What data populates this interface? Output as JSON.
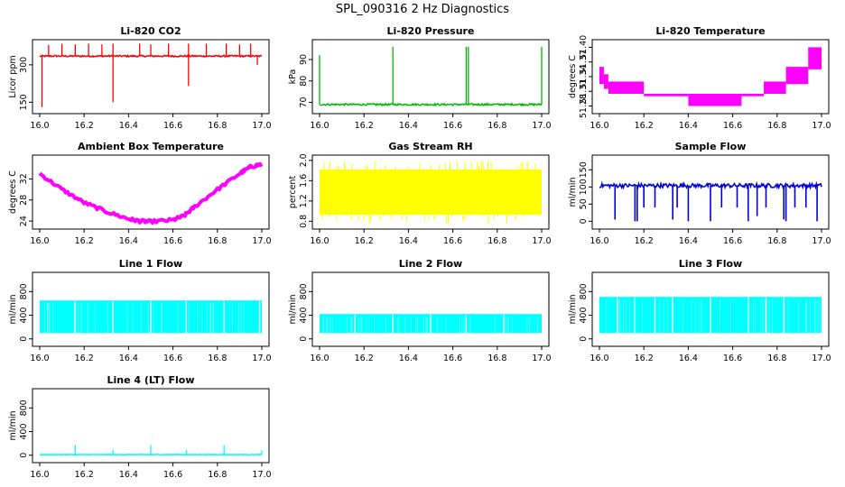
{
  "suptitle": "SPL_090316  2 Hz Diagnostics",
  "chart_data": [
    {
      "type": "line",
      "title": "Li-820 CO2",
      "xlabel": "",
      "ylabel": "Licor ppm",
      "color": "#ff0000",
      "xlim": [
        16.0,
        17.0
      ],
      "xticks": [
        16.0,
        16.2,
        16.4,
        16.6,
        16.8,
        17.0
      ],
      "xtick_labels": [
        "16.0",
        "16.2",
        "16.4",
        "16.6",
        "16.8",
        "17.0"
      ],
      "ylim": [
        115,
        390
      ],
      "yticks": [
        150,
        300
      ],
      "ytick_labels": [
        "150",
        "300"
      ],
      "baseline": 335,
      "noise": 3,
      "spikes": [
        {
          "x": 16.01,
          "y": 130
        },
        {
          "x": 16.04,
          "y": 380
        },
        {
          "x": 16.1,
          "y": 385
        },
        {
          "x": 16.16,
          "y": 382
        },
        {
          "x": 16.22,
          "y": 385
        },
        {
          "x": 16.28,
          "y": 382
        },
        {
          "x": 16.33,
          "y": 150
        },
        {
          "x": 16.33,
          "y": 385
        },
        {
          "x": 16.45,
          "y": 385
        },
        {
          "x": 16.5,
          "y": 382
        },
        {
          "x": 16.58,
          "y": 385
        },
        {
          "x": 16.67,
          "y": 215
        },
        {
          "x": 16.67,
          "y": 385
        },
        {
          "x": 16.75,
          "y": 385
        },
        {
          "x": 16.84,
          "y": 385
        },
        {
          "x": 16.9,
          "y": 382
        },
        {
          "x": 16.95,
          "y": 385
        },
        {
          "x": 16.98,
          "y": 300
        }
      ]
    },
    {
      "type": "line",
      "title": "Li-820 Pressure",
      "xlabel": "",
      "ylabel": "kPa",
      "color": "#00bb00",
      "xlim": [
        16.0,
        17.0
      ],
      "xticks": [
        16.0,
        16.2,
        16.4,
        16.6,
        16.8,
        17.0
      ],
      "xtick_labels": [
        "16.0",
        "16.2",
        "16.4",
        "16.6",
        "16.8",
        "17.0"
      ],
      "ylim": [
        66,
        98
      ],
      "yticks": [
        70,
        80,
        90
      ],
      "ytick_labels": [
        "70",
        "80",
        "90"
      ],
      "baseline": 69,
      "noise": 0.4,
      "spikes": [
        {
          "x": 16.0,
          "y": 92
        },
        {
          "x": 16.33,
          "y": 96
        },
        {
          "x": 16.66,
          "y": 96
        },
        {
          "x": 16.67,
          "y": 96
        },
        {
          "x": 17.0,
          "y": 96
        }
      ]
    },
    {
      "type": "line",
      "title": "Li-820 Temperature",
      "xlabel": "",
      "ylabel": "degrees C",
      "color": "#ff00ff",
      "xlim": [
        16.0,
        17.0
      ],
      "xticks": [
        16.0,
        16.2,
        16.4,
        16.6,
        16.8,
        17.0
      ],
      "xtick_labels": [
        "16.0",
        "16.2",
        "16.4",
        "16.6",
        "16.8",
        "17.0"
      ],
      "ylim": [
        51.27,
        51.41
      ],
      "yticks": [
        51.28,
        51.31,
        51.34,
        51.37,
        51.4
      ],
      "ytick_labels": [
        "51.28",
        "51.31",
        "51.34",
        "51.37",
        "51.40"
      ],
      "steps": [
        {
          "x0": 16.0,
          "x1": 16.02,
          "lo": 51.325,
          "hi": 51.36
        },
        {
          "x0": 16.02,
          "x1": 16.04,
          "lo": 51.315,
          "hi": 51.345
        },
        {
          "x0": 16.04,
          "x1": 16.2,
          "lo": 51.305,
          "hi": 51.33
        },
        {
          "x0": 16.2,
          "x1": 16.4,
          "lo": 51.3,
          "hi": 51.305
        },
        {
          "x0": 16.4,
          "x1": 16.64,
          "lo": 51.28,
          "hi": 51.305
        },
        {
          "x0": 16.64,
          "x1": 16.74,
          "lo": 51.3,
          "hi": 51.305
        },
        {
          "x0": 16.74,
          "x1": 16.84,
          "lo": 51.305,
          "hi": 51.33
        },
        {
          "x0": 16.84,
          "x1": 16.94,
          "lo": 51.325,
          "hi": 51.36
        },
        {
          "x0": 16.94,
          "x1": 17.0,
          "lo": 51.355,
          "hi": 51.4
        }
      ]
    },
    {
      "type": "line",
      "title": "Ambient Box Temperature",
      "xlabel": "",
      "ylabel": "degrees C",
      "color": "#ff00ff",
      "xlim": [
        16.0,
        17.0
      ],
      "xticks": [
        16.0,
        16.2,
        16.4,
        16.6,
        16.8,
        17.0
      ],
      "xtick_labels": [
        "16.0",
        "16.2",
        "16.4",
        "16.6",
        "16.8",
        "17.0"
      ],
      "ylim": [
        23,
        36
      ],
      "yticks": [
        24,
        28,
        32
      ],
      "ytick_labels": [
        "24",
        "28",
        "32"
      ],
      "x": [
        16.0,
        16.1,
        16.2,
        16.3,
        16.4,
        16.45,
        16.5,
        16.6,
        16.65,
        16.7,
        16.8,
        16.9,
        16.95,
        17.0
      ],
      "y": [
        33.0,
        30.0,
        27.5,
        25.8,
        24.4,
        24.0,
        23.9,
        24.2,
        25.0,
        26.8,
        30.0,
        33.0,
        34.3,
        34.8
      ],
      "band": 0.3
    },
    {
      "type": "line",
      "title": "Gas Stream RH",
      "xlabel": "",
      "ylabel": "percent",
      "color": "#ffff00",
      "xlim": [
        16.0,
        17.0
      ],
      "xticks": [
        16.0,
        16.2,
        16.4,
        16.6,
        16.8,
        17.0
      ],
      "xtick_labels": [
        "16.0",
        "16.2",
        "16.4",
        "16.6",
        "16.8",
        "17.0"
      ],
      "ylim": [
        0.7,
        2.05
      ],
      "yticks": [
        0.8,
        1.2,
        1.6,
        2.0
      ],
      "ytick_labels": [
        "0.8",
        "1.2",
        "1.6",
        "2.0"
      ],
      "band_lo": 0.93,
      "band_hi": 1.82,
      "min": 0.75,
      "max": 2.0
    },
    {
      "type": "line",
      "title": "Sample Flow",
      "xlabel": "",
      "ylabel": "ml/min",
      "color": "#0000dd",
      "xlim": [
        16.0,
        17.0
      ],
      "xticks": [
        16.0,
        16.2,
        16.4,
        16.6,
        16.8,
        17.0
      ],
      "xtick_labels": [
        "16.0",
        "16.2",
        "16.4",
        "16.6",
        "16.8",
        "17.0"
      ],
      "ylim": [
        -15,
        185
      ],
      "yticks": [
        0,
        50,
        100,
        150
      ],
      "ytick_labels": [
        "0",
        "50",
        "100",
        "150"
      ],
      "baseline": 104,
      "noise": 6,
      "dips": [
        {
          "x": 16.07,
          "y": 5
        },
        {
          "x": 16.16,
          "y": 0
        },
        {
          "x": 16.17,
          "y": 0
        },
        {
          "x": 16.2,
          "y": 40
        },
        {
          "x": 16.25,
          "y": 40
        },
        {
          "x": 16.33,
          "y": 5
        },
        {
          "x": 16.35,
          "y": 40
        },
        {
          "x": 16.4,
          "y": 0
        },
        {
          "x": 16.5,
          "y": 0
        },
        {
          "x": 16.55,
          "y": 40
        },
        {
          "x": 16.62,
          "y": 40
        },
        {
          "x": 16.67,
          "y": 0
        },
        {
          "x": 16.71,
          "y": 15
        },
        {
          "x": 16.75,
          "y": 40
        },
        {
          "x": 16.83,
          "y": 5
        },
        {
          "x": 16.84,
          "y": 0
        },
        {
          "x": 16.88,
          "y": 40
        },
        {
          "x": 16.93,
          "y": 40
        },
        {
          "x": 16.98,
          "y": 0
        }
      ]
    },
    {
      "type": "area",
      "title": "Line 1 Flow",
      "xlabel": "",
      "ylabel": "ml/min",
      "color": "#00ffff",
      "xlim": [
        16.0,
        17.0
      ],
      "xticks": [
        16.0,
        16.2,
        16.4,
        16.6,
        16.8,
        17.0
      ],
      "xtick_labels": [
        "16.0",
        "16.2",
        "16.4",
        "16.6",
        "16.8",
        "17.0"
      ],
      "ylim": [
        -80,
        1080
      ],
      "yticks": [
        0,
        400,
        800
      ],
      "ytick_labels": [
        "0",
        "400",
        "800"
      ],
      "band_lo": 100,
      "band_hi": 650,
      "gaps": [
        16.16,
        16.33,
        16.5,
        16.66,
        16.83,
        16.99
      ]
    },
    {
      "type": "area",
      "title": "Line 2 Flow",
      "xlabel": "",
      "ylabel": "ml/min",
      "color": "#00ffff",
      "xlim": [
        16.0,
        17.0
      ],
      "xticks": [
        16.0,
        16.2,
        16.4,
        16.6,
        16.8,
        17.0
      ],
      "xtick_labels": [
        "16.0",
        "16.2",
        "16.4",
        "16.6",
        "16.8",
        "17.0"
      ],
      "ylim": [
        -80,
        1080
      ],
      "yticks": [
        0,
        400,
        800
      ],
      "ytick_labels": [
        "0",
        "400",
        "800"
      ],
      "band_lo": 100,
      "band_hi": 420,
      "gaps": [
        16.16,
        16.33,
        16.5,
        16.66,
        16.83
      ]
    },
    {
      "type": "area",
      "title": "Line 3 Flow",
      "xlabel": "",
      "ylabel": "ml/min",
      "color": "#00ffff",
      "xlim": [
        16.0,
        17.0
      ],
      "xticks": [
        16.0,
        16.2,
        16.4,
        16.6,
        16.8,
        17.0
      ],
      "xtick_labels": [
        "16.0",
        "16.2",
        "16.4",
        "16.6",
        "16.8",
        "17.0"
      ],
      "ylim": [
        -80,
        1080
      ],
      "yticks": [
        0,
        400,
        800
      ],
      "ytick_labels": [
        "0",
        "400",
        "800"
      ],
      "band_lo": 100,
      "band_hi": 710,
      "gaps": [
        16.08,
        16.16,
        16.25,
        16.33,
        16.5,
        16.67,
        16.75,
        16.83
      ]
    },
    {
      "type": "line",
      "title": "Line 4 (LT) Flow",
      "xlabel": "",
      "ylabel": "ml/min",
      "color": "#00ffff",
      "xlim": [
        16.0,
        17.0
      ],
      "xticks": [
        16.0,
        16.2,
        16.4,
        16.6,
        16.8,
        17.0
      ],
      "xtick_labels": [
        "16.0",
        "16.2",
        "16.4",
        "16.6",
        "16.8",
        "17.0"
      ],
      "ylim": [
        -80,
        1080
      ],
      "yticks": [
        0,
        400,
        800
      ],
      "ytick_labels": [
        "0",
        "400",
        "800"
      ],
      "baseline": 10,
      "noise": 4,
      "spikes": [
        {
          "x": 16.16,
          "y": 170
        },
        {
          "x": 16.33,
          "y": 90
        },
        {
          "x": 16.5,
          "y": 170
        },
        {
          "x": 16.66,
          "y": 90
        },
        {
          "x": 16.83,
          "y": 170
        },
        {
          "x": 17.0,
          "y": 80
        }
      ]
    }
  ]
}
